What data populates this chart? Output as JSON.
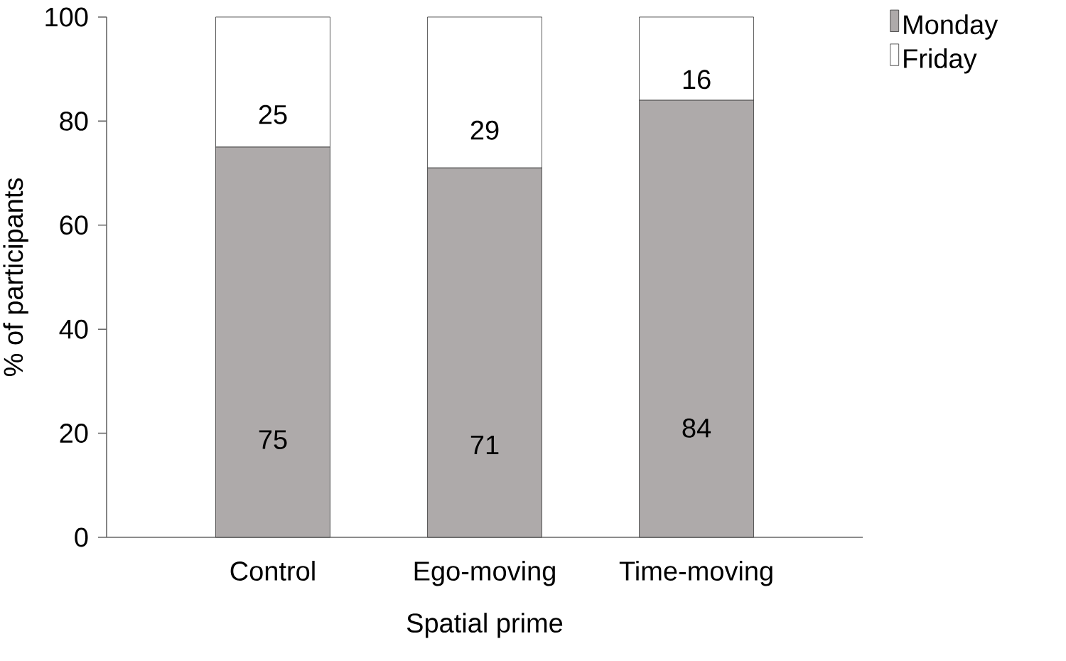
{
  "chart_data": {
    "type": "bar",
    "stacked": true,
    "xlabel": "Spatial prime",
    "ylabel": "% of participants",
    "categories": [
      "Control",
      "Ego-moving",
      "Time-moving"
    ],
    "series": [
      {
        "name": "Monday",
        "color": "#aeaaaa",
        "values": [
          75,
          71,
          84
        ]
      },
      {
        "name": "Friday",
        "color": "#ffffff",
        "values": [
          25,
          29,
          16
        ]
      }
    ],
    "ylim": [
      0,
      100
    ],
    "yticks": [
      0,
      20,
      40,
      60,
      80,
      100
    ],
    "data_labels": true,
    "legend": "top right",
    "grid": false
  }
}
